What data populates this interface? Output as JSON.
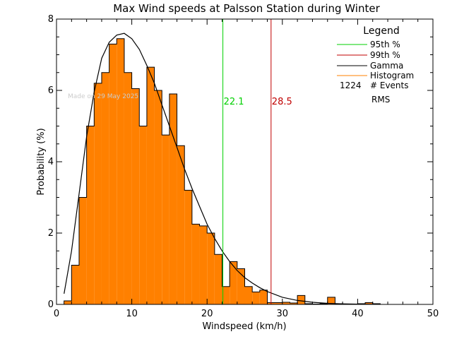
{
  "chart_data": {
    "type": "bar",
    "title": "Max Wind speeds at Palsson Station during Winter",
    "xlabel": "Windspeed (km/h)",
    "ylabel": "Probability (%)",
    "xlim": [
      0,
      50
    ],
    "ylim": [
      0,
      8
    ],
    "x_ticks": [
      0,
      10,
      20,
      30,
      40,
      50
    ],
    "y_ticks": [
      0,
      2,
      4,
      6,
      8
    ],
    "bin_width": 1,
    "bin_starts": [
      0,
      1,
      2,
      3,
      4,
      5,
      6,
      7,
      8,
      9,
      10,
      11,
      12,
      13,
      14,
      15,
      16,
      17,
      18,
      19,
      20,
      21,
      22,
      23,
      24,
      25,
      26,
      27,
      28,
      29,
      30,
      31,
      32,
      33,
      34,
      35,
      36,
      37,
      38,
      39,
      40,
      41,
      42,
      43,
      44,
      45,
      46,
      47,
      48,
      49
    ],
    "series": [
      {
        "name": "Histogram",
        "color": "#ff8000",
        "values": [
          0,
          0.1,
          1.1,
          3.0,
          5.0,
          6.2,
          6.5,
          7.3,
          7.45,
          6.5,
          6.05,
          5.0,
          6.65,
          6.0,
          4.75,
          5.9,
          4.45,
          3.2,
          2.25,
          2.2,
          2.0,
          1.4,
          0.5,
          1.2,
          1.0,
          0.5,
          0.35,
          0.4,
          0.05,
          0.05,
          0.06,
          0.04,
          0.25,
          0.02,
          0.01,
          0.02,
          0.2,
          0.02,
          0.01,
          0.01,
          0.02,
          0.05,
          0.02,
          0,
          0,
          0,
          0,
          0,
          0,
          0
        ]
      },
      {
        "name": "Gamma",
        "color": "#000000",
        "x": [
          1,
          2,
          3,
          4,
          5,
          6,
          7,
          8,
          9,
          10,
          11,
          12,
          13,
          14,
          15,
          16,
          17,
          18,
          19,
          20,
          21,
          22,
          23,
          24,
          25,
          26,
          27,
          28,
          30,
          32,
          34,
          36,
          38,
          40,
          42
        ],
        "values": [
          0.3,
          1.5,
          3.1,
          4.7,
          5.95,
          6.9,
          7.35,
          7.55,
          7.6,
          7.45,
          7.15,
          6.7,
          6.2,
          5.6,
          5.0,
          4.4,
          3.8,
          3.25,
          2.75,
          2.25,
          1.85,
          1.5,
          1.2,
          0.95,
          0.75,
          0.6,
          0.47,
          0.36,
          0.2,
          0.11,
          0.06,
          0.03,
          0.015,
          0.008,
          0.004
        ]
      }
    ],
    "reference_lines": [
      {
        "name": "95th %",
        "value": 22.1,
        "label": "22.1",
        "color": "#00d000"
      },
      {
        "name": "99th %",
        "value": 28.5,
        "label": "28.5",
        "color": "#c00000"
      }
    ],
    "legend": {
      "title": "Legend",
      "position": "top-right",
      "items": [
        {
          "label": "95th %",
          "color": "#00d000"
        },
        {
          "label": "99th %",
          "color": "#c00000"
        },
        {
          "label": "Gamma",
          "color": "#000000"
        },
        {
          "label": "Histogram",
          "color": "#ff8000"
        }
      ],
      "events_count": "1224",
      "events_label": "# Events",
      "rms_label": "RMS"
    },
    "watermark": "Made on 29 May 2025",
    "grid": false
  }
}
